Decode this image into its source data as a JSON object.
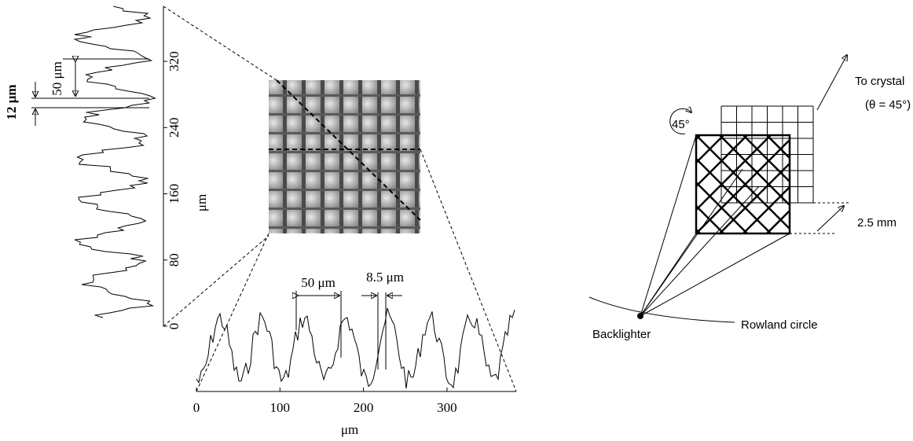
{
  "left_figure": {
    "x_axis": {
      "label": "μm",
      "ticks": [
        0,
        100,
        200,
        300
      ]
    },
    "y_axis": {
      "label": "μm",
      "ticks": [
        0,
        80,
        160,
        240,
        320
      ]
    },
    "annotations": {
      "horizontal_period": "50 μm",
      "horizontal_wire": "8.5 μm",
      "vertical_period": "50 μm",
      "vertical_wire": "12 μm"
    }
  },
  "right_figure": {
    "to_crystal": "To crystal",
    "angle_note": "(θ = 45°)",
    "rotation": "45°",
    "size": "2.5 mm",
    "backlighter": "Backlighter",
    "rowland": "Rowland circle"
  }
}
